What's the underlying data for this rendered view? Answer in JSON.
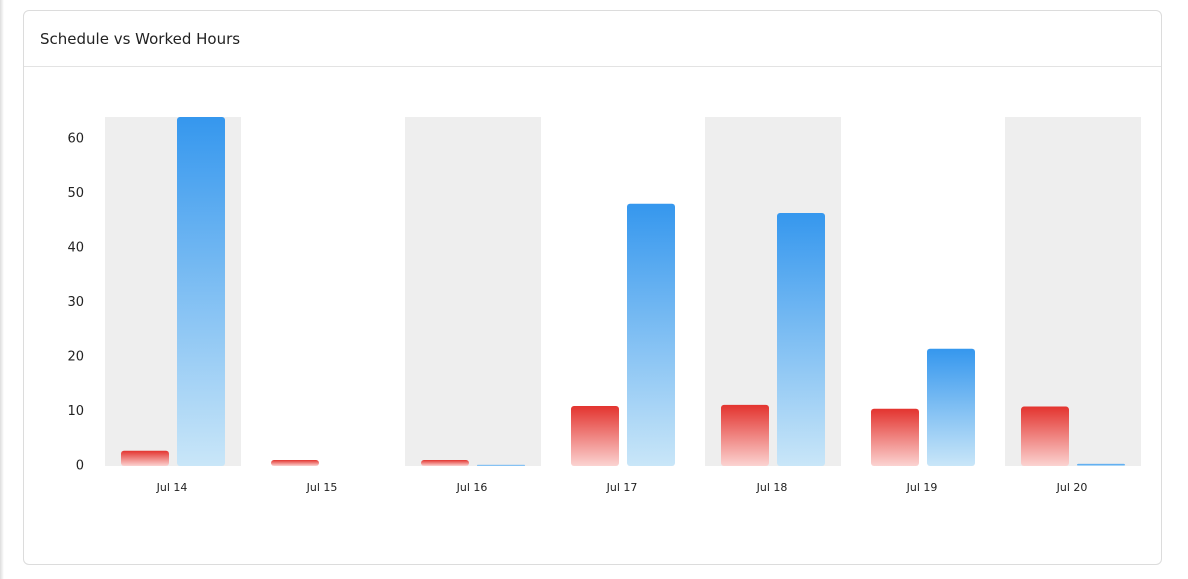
{
  "header": {
    "title": "Schedule vs Worked Hours"
  },
  "chart_data": {
    "type": "bar",
    "categories": [
      "Jul 14",
      "Jul 15",
      "Jul 16",
      "Jul 17",
      "Jul 18",
      "Jul 19",
      "Jul 20"
    ],
    "series": [
      {
        "color": "#e3342f",
        "fade_color": "#fbd3d1",
        "values": [
          2.8,
          1.1,
          1.1,
          11.0,
          11.2,
          10.5,
          10.9
        ]
      },
      {
        "color": "#3597ee",
        "fade_color": "#c9e6f8",
        "values": [
          64,
          0,
          0.2,
          48.1,
          46.4,
          21.5,
          0.4
        ]
      }
    ],
    "ylim": [
      0,
      64
    ],
    "yticks": [
      0,
      10,
      20,
      30,
      40,
      50,
      60
    ]
  }
}
